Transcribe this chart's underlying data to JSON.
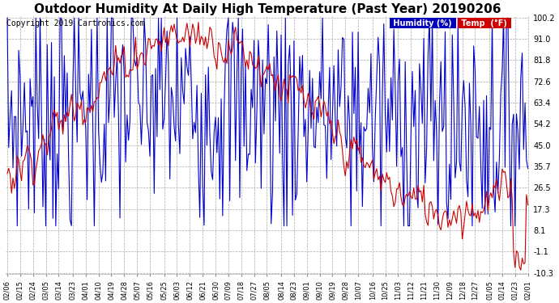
{
  "title": "Outdoor Humidity At Daily High Temperature (Past Year) 20190206",
  "copyright": "Copyright 2019 Cartronics.com",
  "legend_humidity": "Humidity (%)",
  "legend_temp": "Temp  (°F)",
  "legend_humidity_bg": "#0000bb",
  "legend_temp_bg": "#cc0000",
  "yticks": [
    100.2,
    91.0,
    81.8,
    72.6,
    63.4,
    54.2,
    45.0,
    35.7,
    26.5,
    17.3,
    8.1,
    -1.1,
    -10.3
  ],
  "ymin": -10.3,
  "ymax": 100.2,
  "bg_color": "#ffffff",
  "plot_bg": "#ffffff",
  "grid_color": "#aaaaaa",
  "humidity_color": "#0000cc",
  "temp_color": "#cc0000",
  "title_fontsize": 11,
  "copyright_fontsize": 7,
  "xtick_labels": [
    "02/06",
    "02/15",
    "02/24",
    "03/05",
    "03/14",
    "03/23",
    "04/01",
    "04/10",
    "04/19",
    "04/28",
    "05/07",
    "05/16",
    "05/25",
    "06/03",
    "06/12",
    "06/21",
    "06/30",
    "07/09",
    "07/18",
    "07/27",
    "08/05",
    "08/14",
    "08/23",
    "09/01",
    "09/10",
    "09/19",
    "09/28",
    "10/07",
    "10/16",
    "10/25",
    "11/03",
    "11/12",
    "11/21",
    "11/30",
    "12/09",
    "12/18",
    "12/27",
    "01/05",
    "01/14",
    "01/23",
    "02/01"
  ]
}
